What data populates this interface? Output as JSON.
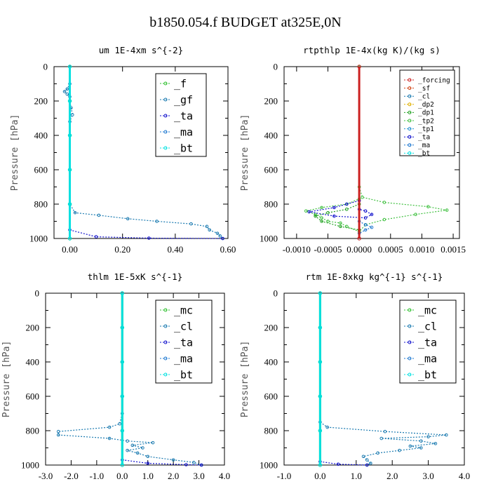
{
  "figure_title": "b1850.054.f  BUDGET at325E,0N",
  "colors": {
    "_f": "#2ec02e",
    "_gf": "#1a7ab0",
    "_ta": "#1010cc",
    "_ma": "#1e78d0",
    "_bt": "#00e0e0",
    "_mc": "#2ec02e",
    "_cl": "#1a7ab0",
    "_forcing": "#cc2020",
    "_sf": "#d04010",
    "_dp2": "#e0b000",
    "_dp1": "#20a020",
    "_tp2": "#40c040",
    "_tp1": "#2090d0"
  },
  "chart_data": [
    {
      "type": "line",
      "title": "um  1E-4xm s^{-2}",
      "ylabel": "Pressure [hPa]",
      "xlim": [
        -0.06,
        0.6
      ],
      "ylim": [
        1000,
        0
      ],
      "xticks": [
        "0.00",
        "0.20",
        "0.40",
        "0.60"
      ],
      "xtick_values": [
        0,
        0.2,
        0.4,
        0.6
      ],
      "yticks": [
        "0",
        "200",
        "400",
        "600",
        "800",
        "1000"
      ],
      "legend": [
        "_f",
        "_gf",
        "_ta",
        "_ma",
        "_bt"
      ],
      "legend_position": "top-right",
      "series": [
        {
          "name": "_gf",
          "points": [
            [
              0.0,
              0
            ],
            [
              0.0,
              100
            ],
            [
              -0.01,
              130
            ],
            [
              -0.02,
              145
            ],
            [
              -0.01,
              160
            ],
            [
              0.0,
              175
            ],
            [
              0.0,
              200
            ],
            [
              0.005,
              240
            ],
            [
              0.01,
              280
            ],
            [
              0.0,
              320
            ],
            [
              0.0,
              400
            ],
            [
              0.0,
              600
            ],
            [
              0.0,
              800
            ],
            [
              0.02,
              850
            ],
            [
              0.11,
              865
            ],
            [
              0.22,
              885
            ],
            [
              0.33,
              900
            ],
            [
              0.46,
              915
            ],
            [
              0.52,
              930
            ],
            [
              0.53,
              950
            ],
            [
              0.56,
              970
            ],
            [
              0.57,
              985
            ],
            [
              0.58,
              1000
            ]
          ]
        },
        {
          "name": "_ta",
          "points": [
            [
              0.0,
              950
            ],
            [
              0.1,
              990
            ],
            [
              0.3,
              998
            ],
            [
              0.58,
              1000
            ]
          ]
        },
        {
          "name": "_f",
          "points": [
            [
              0,
              0
            ],
            [
              0,
              200
            ],
            [
              0,
              400
            ],
            [
              0,
              600
            ],
            [
              0,
              800
            ],
            [
              0,
              1000
            ]
          ]
        },
        {
          "name": "_bt",
          "points": [
            [
              0,
              0
            ],
            [
              0,
              200
            ],
            [
              0,
              400
            ],
            [
              0,
              600
            ],
            [
              0,
              800
            ],
            [
              0,
              1000
            ]
          ]
        }
      ]
    },
    {
      "type": "line",
      "title": "rtpthlp  1E-4x(kg K)/(kg s)",
      "ylabel": "Pressure [hPa]",
      "xlim": [
        -0.0012,
        0.0016
      ],
      "ylim": [
        1000,
        0
      ],
      "xticks": [
        "-0.0010",
        "-0.0005",
        "0.0000",
        "0.0005",
        "0.0010",
        "0.0015"
      ],
      "xtick_values": [
        -0.001,
        -0.0005,
        0,
        0.0005,
        0.001,
        0.0015
      ],
      "yticks": [
        "0",
        "200",
        "400",
        "600",
        "800",
        "1000"
      ],
      "legend": [
        "_forcing",
        "_sf",
        "_cl",
        "_dp2",
        "_dp1",
        "_tp2",
        "_tp1",
        "_ta",
        "_ma",
        "_bt"
      ],
      "legend_position": "top-right",
      "series": [
        {
          "name": "_tp2",
          "points": [
            [
              0,
              0
            ],
            [
              0,
              700
            ],
            [
              5e-05,
              760
            ],
            [
              0.0004,
              790
            ],
            [
              0.0011,
              815
            ],
            [
              0.0014,
              835
            ],
            [
              0.0009,
              860
            ],
            [
              0.0004,
              890
            ],
            [
              0.0001,
              920
            ],
            [
              0,
              960
            ],
            [
              -0.0002,
              930
            ],
            [
              -0.0003,
              910
            ],
            [
              -0.0005,
              900
            ],
            [
              -0.0006,
              880
            ],
            [
              -0.0007,
              860
            ],
            [
              -0.00085,
              840
            ],
            [
              -0.0006,
              820
            ],
            [
              -0.0002,
              800
            ],
            [
              0,
              770
            ]
          ]
        },
        {
          "name": "_dp1",
          "points": [
            [
              0,
              800
            ],
            [
              -0.0002,
              830
            ],
            [
              -0.0005,
              850
            ],
            [
              -0.0007,
              870
            ],
            [
              -0.0006,
              900
            ],
            [
              -0.0003,
              930
            ],
            [
              0,
              950
            ]
          ]
        },
        {
          "name": "_ta",
          "points": [
            [
              0,
              780
            ],
            [
              -0.0002,
              800
            ],
            [
              -0.0004,
              820
            ],
            [
              -0.0008,
              845
            ],
            [
              -0.0004,
              870
            ],
            [
              0.0001,
              880
            ],
            [
              0.0002,
              860
            ],
            [
              0.0001,
              840
            ],
            [
              0,
              830
            ]
          ]
        },
        {
          "name": "_ma",
          "points": [
            [
              0,
              900
            ],
            [
              0.0001,
              920
            ],
            [
              0.0002,
              935
            ],
            [
              0.0001,
              950
            ],
            [
              0,
              970
            ]
          ]
        },
        {
          "name": "_forcing",
          "points": [
            [
              0,
              0
            ],
            [
              0,
              1000
            ]
          ]
        }
      ]
    },
    {
      "type": "line",
      "title": "thlm  1E-5xK s^{-1}",
      "ylabel": "Pressure [hPa]",
      "xlim": [
        -3.0,
        4.0
      ],
      "ylim": [
        1000,
        0
      ],
      "xticks": [
        "-3.0",
        "-2.0",
        "-1.0",
        "0.0",
        "1.0",
        "2.0",
        "3.0",
        "4.0"
      ],
      "xtick_values": [
        -3,
        -2,
        -1,
        0,
        1,
        2,
        3,
        4
      ],
      "yticks": [
        "0",
        "200",
        "400",
        "600",
        "800",
        "1000"
      ],
      "legend": [
        "_mc",
        "_cl",
        "_ta",
        "_ma",
        "_bt"
      ],
      "legend_position": "top-right",
      "series": [
        {
          "name": "_cl",
          "points": [
            [
              0,
              0
            ],
            [
              0,
              200
            ],
            [
              0,
              400
            ],
            [
              0,
              600
            ],
            [
              0,
              700
            ],
            [
              -0.1,
              760
            ],
            [
              -0.5,
              780
            ],
            [
              -2.5,
              805
            ],
            [
              -2.5,
              825
            ],
            [
              -0.5,
              845
            ],
            [
              0.2,
              860
            ],
            [
              1.2,
              870
            ],
            [
              0.4,
              885
            ],
            [
              0.8,
              900
            ],
            [
              0.2,
              915
            ],
            [
              0.6,
              930
            ],
            [
              1.0,
              950
            ],
            [
              2.0,
              970
            ],
            [
              2.8,
              985
            ],
            [
              3.1,
              1000
            ]
          ]
        },
        {
          "name": "_ta",
          "points": [
            [
              0,
              970
            ],
            [
              1.0,
              990
            ],
            [
              2.5,
              998
            ],
            [
              3.1,
              1000
            ]
          ]
        },
        {
          "name": "_mc",
          "points": [
            [
              0,
              0
            ],
            [
              0,
              200
            ],
            [
              0,
              400
            ],
            [
              0,
              600
            ],
            [
              0,
              800
            ],
            [
              0,
              1000
            ]
          ]
        },
        {
          "name": "_bt",
          "points": [
            [
              0,
              0
            ],
            [
              0,
              200
            ],
            [
              0,
              400
            ],
            [
              0,
              600
            ],
            [
              0,
              800
            ],
            [
              0,
              1000
            ]
          ]
        }
      ]
    },
    {
      "type": "line",
      "title": "rtm  1E-8xkg kg^{-1} s^{-1}",
      "ylabel": "Pressure [hPa]",
      "xlim": [
        -1.0,
        4.0
      ],
      "ylim": [
        1000,
        0
      ],
      "xticks": [
        "-1.0",
        "0.0",
        "1.0",
        "2.0",
        "3.0",
        "4.0"
      ],
      "xtick_values": [
        -1,
        0,
        1,
        2,
        3,
        4
      ],
      "yticks": [
        "0",
        "200",
        "400",
        "600",
        "800",
        "1000"
      ],
      "legend": [
        "_mc",
        "_cl",
        "_ta",
        "_ma",
        "_bt"
      ],
      "legend_position": "top-right",
      "series": [
        {
          "name": "_cl",
          "points": [
            [
              0,
              0
            ],
            [
              0,
              200
            ],
            [
              0,
              400
            ],
            [
              0,
              600
            ],
            [
              0,
              750
            ],
            [
              0.2,
              780
            ],
            [
              1.8,
              805
            ],
            [
              3.5,
              825
            ],
            [
              3.0,
              835
            ],
            [
              1.7,
              845
            ],
            [
              2.8,
              860
            ],
            [
              3.2,
              875
            ],
            [
              2.5,
              890
            ],
            [
              2.8,
              900
            ],
            [
              2.2,
              915
            ],
            [
              1.6,
              930
            ],
            [
              1.2,
              950
            ],
            [
              1.3,
              970
            ],
            [
              1.4,
              990
            ],
            [
              1.3,
              1000
            ]
          ]
        },
        {
          "name": "_ta",
          "points": [
            [
              0,
              980
            ],
            [
              0.5,
              995
            ],
            [
              1.3,
              1000
            ]
          ]
        },
        {
          "name": "_mc",
          "points": [
            [
              0,
              0
            ],
            [
              0,
              200
            ],
            [
              0,
              400
            ],
            [
              0,
              600
            ],
            [
              0,
              800
            ],
            [
              0,
              1000
            ]
          ]
        },
        {
          "name": "_bt",
          "points": [
            [
              0,
              0
            ],
            [
              0,
              200
            ],
            [
              0,
              400
            ],
            [
              0,
              600
            ],
            [
              0,
              800
            ],
            [
              0,
              1000
            ]
          ]
        }
      ]
    }
  ]
}
